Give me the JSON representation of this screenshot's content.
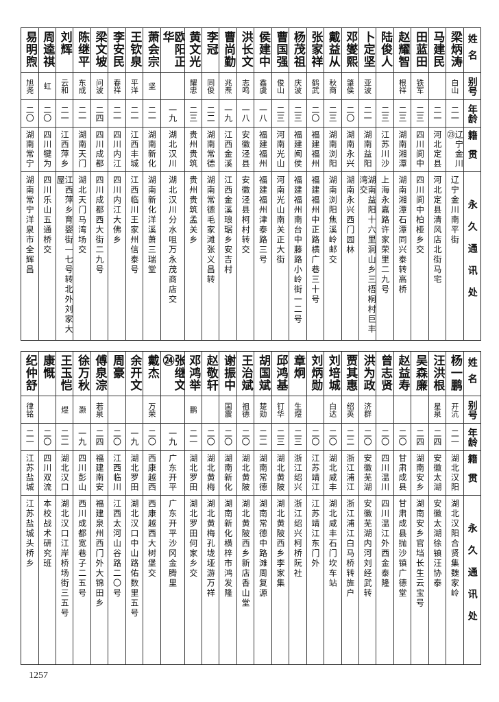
{
  "headers": {
    "name": "姓名",
    "alias": "别号",
    "age": "年龄",
    "native": "籍贯",
    "address": "永久通讯处"
  },
  "tables": [
    {
      "rows": [
        {
          "name": "梁炳涛",
          "alias": "白山",
          "age": "二一",
          "native": "辽宁金川㉓",
          "address": "辽宁金川南平街"
        },
        {
          "name": "马建民",
          "alias": "",
          "age": "二一",
          "native": "河北定县",
          "address": "河北定县清风店北街马宅"
        },
        {
          "name": "田蓝田",
          "alias": "铁军",
          "age": "二三",
          "native": "四川阆中",
          "address": "四川阆中柏桠乡交"
        },
        {
          "name": "赵耀智",
          "alias": "根祥",
          "age": "二三",
          "native": "湖南湘潭",
          "address": "湖南湘潭石潭同兴泰转高桥"
        },
        {
          "name": "陆俊人",
          "alias": "",
          "age": "二三",
          "native": "江苏川沙",
          "address": "上海永嘉路许家荣里二九号"
        },
        {
          "name": "卜定坚",
          "alias": "亚波",
          "age": "二一",
          "native": "湖南益阳",
          "address": "湖南益阳十六里洞山乡三梧桐村巨丰湾交"
        },
        {
          "name": "邓燮熙",
          "alias": "肇侯",
          "age": "二〇",
          "native": "湖南永兴",
          "address": "湖南永兴西门园林"
        },
        {
          "name": "戴益从",
          "alias": "秋商",
          "age": "二三",
          "native": "湖南浏阳",
          "address": "湖南浏阳焦溪岭邮交"
        },
        {
          "name": "张家祥",
          "alias": "鹤武",
          "age": "二〇",
          "native": "福建福州",
          "address": "福建福州中正路横广巷三十号"
        },
        {
          "name": "杨茂祖",
          "alias": "庆波",
          "age": "二三",
          "native": "福建闽侯",
          "address": "福建福州南台中藤路小岭街一二号"
        },
        {
          "name": "曹国强",
          "alias": "俊山",
          "age": "二三",
          "native": "河南光山",
          "address": "河南光山南关正大街"
        },
        {
          "name": "侯建中",
          "alias": "鑫虞",
          "age": "一八",
          "native": "福建福州",
          "address": "福建福州津泰路三号"
        },
        {
          "name": "洪长文",
          "alias": "志鸣",
          "age": "一八",
          "native": "安徽泾县",
          "address": "安徽泾县柯村转交"
        },
        {
          "name": "曹尚勤",
          "alias": "兆焘",
          "age": "一九",
          "native": "江西金溪",
          "address": "江西金溪琅琚乡安吉村"
        },
        {
          "name": "李冠",
          "alias": "同俊",
          "age": "二二",
          "native": "湖南常德",
          "address": "湖南常德毛家滩张义昌转"
        },
        {
          "name": "黄文光",
          "alias": "耀忠",
          "age": "二三",
          "native": "贵州贵筑",
          "address": "贵州贵筑孟关乡"
        },
        {
          "name": "欧阳正华",
          "alias": "",
          "age": "一九",
          "native": "湖北汉川",
          "address": "湖北汉川分水咀万永茂商店交"
        },
        {
          "name": "萧会宗",
          "alias": "坚",
          "age": "二一",
          "native": "湖南新化",
          "address": "湖南新化洋溪萧三瑞堂"
        },
        {
          "name": "王钦泉",
          "alias": "平洋",
          "age": "二一",
          "native": "江西丰城",
          "address": "江西临川王家州信泰号"
        },
        {
          "name": "李安民",
          "alias": "春祥",
          "age": "二一",
          "native": "四川内江",
          "address": "四川内江大佛乡"
        },
        {
          "name": "梁文坡",
          "alias": "问波",
          "age": "二四",
          "native": "四川成都",
          "address": "四川成都西大街二九号"
        },
        {
          "name": "陈继平",
          "alias": "东成",
          "age": "二一",
          "native": "湖南天门",
          "address": "湖北天门马湾场交"
        },
        {
          "name": "刘辉",
          "alias": "云和",
          "age": "二一",
          "native": "江西萍乡",
          "address": "江西萍乡育婴街一七号转北外刘家大屋"
        },
        {
          "name": "周逵祺",
          "alias": "虹",
          "age": "二〇",
          "native": "四川犍为",
          "address": "四川乐山五通桥交"
        },
        {
          "name": "易明煦",
          "alias": "旭尧",
          "age": "二〇",
          "native": "湖南常宁",
          "address": "湖南常宁洋泉市全辉昌"
        }
      ]
    },
    {
      "rows": [
        {
          "name": "杨一鹏",
          "alias": "开沆",
          "age": "二一",
          "native": "湖北汉阳",
          "address": "湖北汉阳合贤集魏家岭"
        },
        {
          "name": "汪洪根",
          "alias": "星泉",
          "age": "二四",
          "native": "安徽太湖",
          "address": "安徽太湖徐镇汪协泰"
        },
        {
          "name": "吴森廉",
          "alias": "",
          "age": "二四",
          "native": "湖南安乡",
          "address": "湖南安乡官垱长生云宝号"
        },
        {
          "name": "赵益寿",
          "alias": "",
          "age": "二〇",
          "native": "甘肃成县",
          "address": "甘肃成县抛沙镇广德堂"
        },
        {
          "name": "曾志贤",
          "alias": "",
          "age": "二〇",
          "native": "四川温川",
          "address": "四川温江外西金泰隆"
        },
        {
          "name": "洪为政",
          "alias": "济群",
          "age": "二〇",
          "native": "安徽芜湖",
          "address": "安徽芜湖内河刘经武转"
        },
        {
          "name": "贾其惠",
          "alias": "绍英",
          "age": "二二",
          "native": "浙江浦江",
          "address": "浙江浦江白马桥转旌户"
        },
        {
          "name": "刘培城",
          "alias": "白达",
          "age": "二〇",
          "native": "湖北咸丰",
          "address": "湖北咸丰石门坎车站"
        },
        {
          "name": "刘炳勋",
          "alias": "",
          "age": "二〇",
          "native": "江苏靖江",
          "address": "江苏靖江东门外"
        },
        {
          "name": "章炯",
          "alias": "生煜",
          "age": "二三",
          "native": "浙江绍兴",
          "address": "浙江绍兴柯桥阮社"
        },
        {
          "name": "邱鸿基",
          "alias": "钉华",
          "age": "二三",
          "native": "湖北黄陂",
          "address": "湖北黄陂西乡李家集"
        },
        {
          "name": "胡国斌",
          "alias": "楚勋",
          "age": "二二",
          "native": "湖南常德",
          "address": "湖南常德中路滩周复源"
        },
        {
          "name": "王治斌",
          "alias": "祖德",
          "age": "二〇",
          "native": "湖北黄陂",
          "address": "湖北黄陂西乡新店香山堂"
        },
        {
          "name": "谢振中",
          "alias": "国震",
          "age": "二〇",
          "native": "湖南新化",
          "address": "湖南新化横梓市鸿发隆"
        },
        {
          "name": "赵敬轩",
          "alias": "",
          "age": "二〇",
          "native": "湖北黄梅",
          "address": "湖北黄梅孔垅垭游万祥"
        },
        {
          "name": "邓鸿举",
          "alias": "鹏",
          "age": "二一",
          "native": "湖北罗田",
          "address": "湖北罗田何家乡交"
        },
        {
          "name": "张继文㉔",
          "alias": "",
          "age": "一九",
          "native": "广东开平",
          "address": "广东开平沙冈金腾里"
        },
        {
          "name": "戴杰",
          "alias": "万荣",
          "age": "二〇",
          "native": "西康越西",
          "address": "西康越西大树堡交"
        },
        {
          "name": "余开文",
          "alias": "",
          "age": "一九",
          "native": "湖北罗田",
          "address": "湖北汉口中山路佑数里五号"
        },
        {
          "name": "周豪",
          "alias": "",
          "age": "二〇",
          "native": "江西临川",
          "address": "江西太河山谷路二〇号"
        },
        {
          "name": "傅泉淙",
          "alias": "若泉",
          "age": "二四",
          "native": "福建南安",
          "address": "福建泉州西门外大锦田乡"
        },
        {
          "name": "徐万秋",
          "alias": "灏",
          "age": "一九",
          "native": "四川彭山",
          "address": "西川成都宽巷子二五号"
        },
        {
          "name": "王玉恺",
          "alias": "煜",
          "age": "二二",
          "native": "湖北汉口",
          "address": "湖北汉口江岸桥场街三五号"
        },
        {
          "name": "康慨",
          "alias": "",
          "age": "二〇",
          "native": "四川双流",
          "address": "本校战术研究班"
        },
        {
          "name": "纪仲舒",
          "alias": "律铭",
          "age": "二一",
          "native": "江苏盐城",
          "address": "江苏盐城头桥乡"
        }
      ]
    }
  ],
  "page_number": "1257"
}
